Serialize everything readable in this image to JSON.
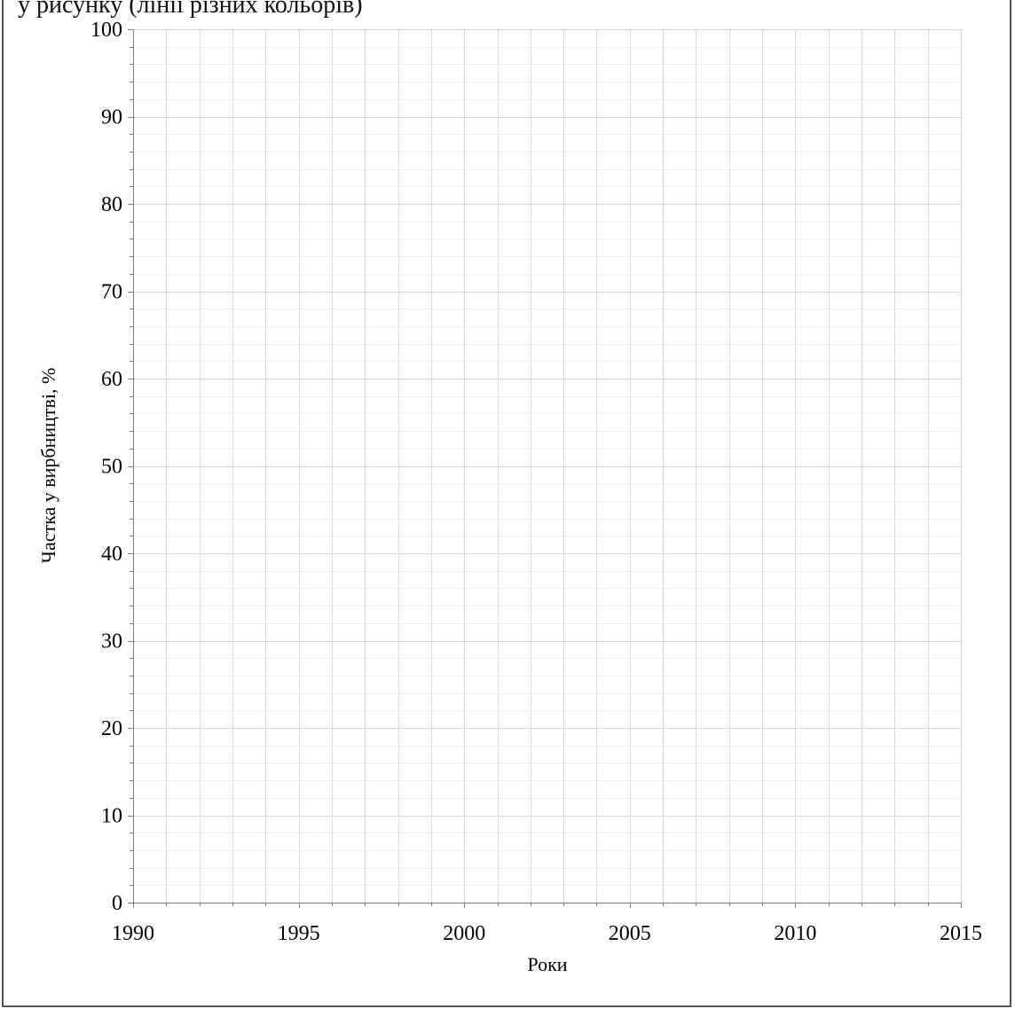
{
  "header": {
    "cut_text": "у    рисунку (лінії різних кольорів)"
  },
  "chart_data": {
    "type": "line",
    "title": "",
    "xlabel": "Роки",
    "ylabel": "Частка у вирбництві, %",
    "xlim": [
      1990,
      2015
    ],
    "ylim": [
      0,
      100
    ],
    "x_ticks": [
      "1990",
      "1995",
      "2000",
      "2005",
      "2010",
      "2015"
    ],
    "y_ticks": [
      "0",
      "10",
      "20",
      "30",
      "40",
      "50",
      "60",
      "70",
      "80",
      "90",
      "100"
    ],
    "x_major_step": 1,
    "y_major_step": 10,
    "y_minor_step": 2,
    "grid": true,
    "series": [],
    "colors": {
      "major_grid": "#d9d9d9",
      "minor_grid": "#efefef",
      "axis": "#7f7f7f",
      "frame": "#555555"
    }
  }
}
